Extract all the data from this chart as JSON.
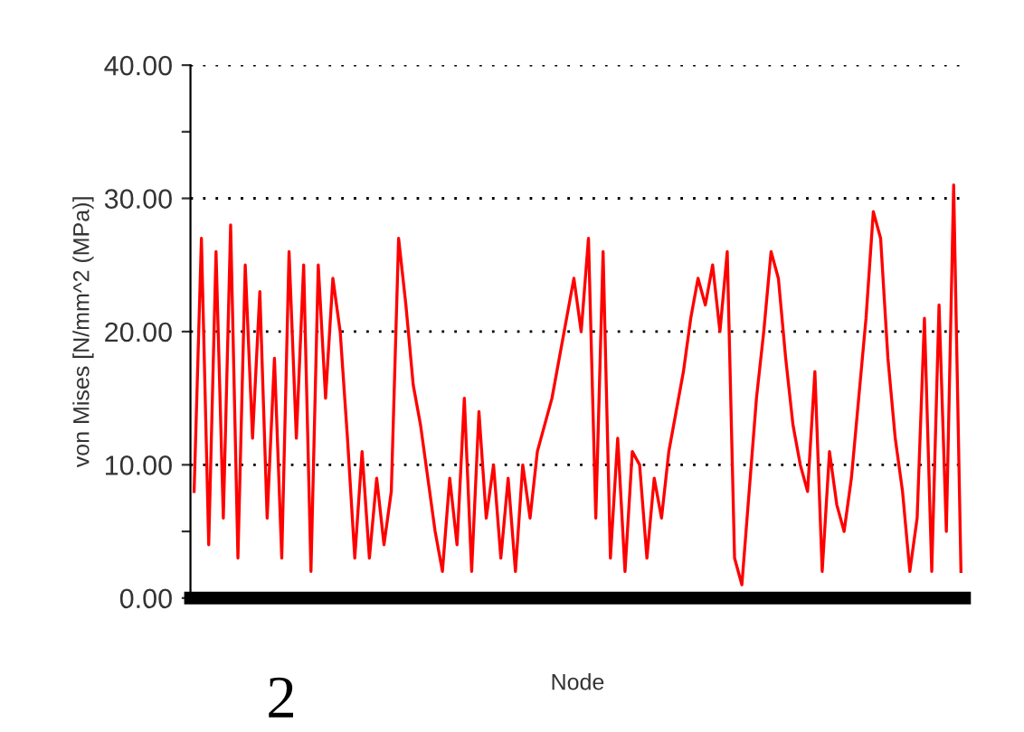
{
  "chart_data": {
    "type": "line",
    "xlabel": "Node",
    "ylabel": "von Mises [N/mm^2 (MPa)]",
    "annotations": [
      "2"
    ],
    "categories": [
      null,
      null,
      null,
      null,
      null,
      null,
      null,
      null,
      null,
      null,
      null,
      null,
      null,
      null,
      null,
      null,
      null,
      null,
      null,
      null,
      null,
      null,
      null,
      null,
      null,
      null,
      null,
      null,
      null,
      null,
      null,
      null,
      null,
      null,
      null,
      null,
      null,
      null,
      null,
      null,
      null,
      null,
      null,
      null,
      null,
      null,
      null,
      null,
      null,
      null,
      null,
      null,
      null,
      null,
      null,
      null,
      null,
      null,
      null,
      null,
      null,
      null,
      null,
      null,
      null,
      null,
      null,
      null,
      null,
      null,
      null,
      null,
      null,
      null,
      null,
      null,
      null,
      null,
      null,
      null,
      null,
      null,
      null,
      null,
      null,
      null,
      null,
      null,
      null,
      null,
      null,
      null,
      null,
      null,
      null,
      null,
      null,
      null,
      null,
      null,
      null,
      null,
      null,
      null,
      null,
      null
    ],
    "series": [
      {
        "color": "#ff0000",
        "values": [
          8,
          27,
          4,
          26,
          6,
          28,
          3,
          25,
          12,
          23,
          6,
          18,
          3,
          26,
          12,
          25,
          2,
          25,
          15,
          24,
          20,
          12,
          3,
          11,
          3,
          9,
          4,
          8,
          27,
          22,
          16,
          13,
          9,
          5,
          2,
          9,
          4,
          15,
          2,
          14,
          6,
          10,
          3,
          9,
          2,
          10,
          6,
          11,
          13,
          15,
          18,
          21,
          24,
          20,
          27,
          6,
          26,
          3,
          12,
          2,
          11,
          10,
          3,
          9,
          6,
          11,
          14,
          17,
          21,
          24,
          22,
          25,
          20,
          26,
          3,
          1,
          8,
          15,
          20,
          26,
          24,
          18,
          13,
          10,
          8,
          17,
          2,
          11,
          7,
          5,
          9,
          15,
          21,
          29,
          27,
          18,
          12,
          8,
          2,
          6,
          21,
          2,
          22,
          5,
          31,
          2
        ]
      }
    ],
    "ylim": [
      0,
      40
    ],
    "yticks": [
      {
        "value": 0,
        "label": "0.00"
      },
      {
        "value": 5,
        "label": null
      },
      {
        "value": 10,
        "label": "10.00"
      },
      {
        "value": 20,
        "label": "20.00"
      },
      {
        "value": 30,
        "label": "30.00"
      },
      {
        "value": 35,
        "label": null
      },
      {
        "value": 40,
        "label": "40.00"
      }
    ],
    "grid": "y",
    "line_style": "solid",
    "marker": "none",
    "tick_labels": "y"
  }
}
